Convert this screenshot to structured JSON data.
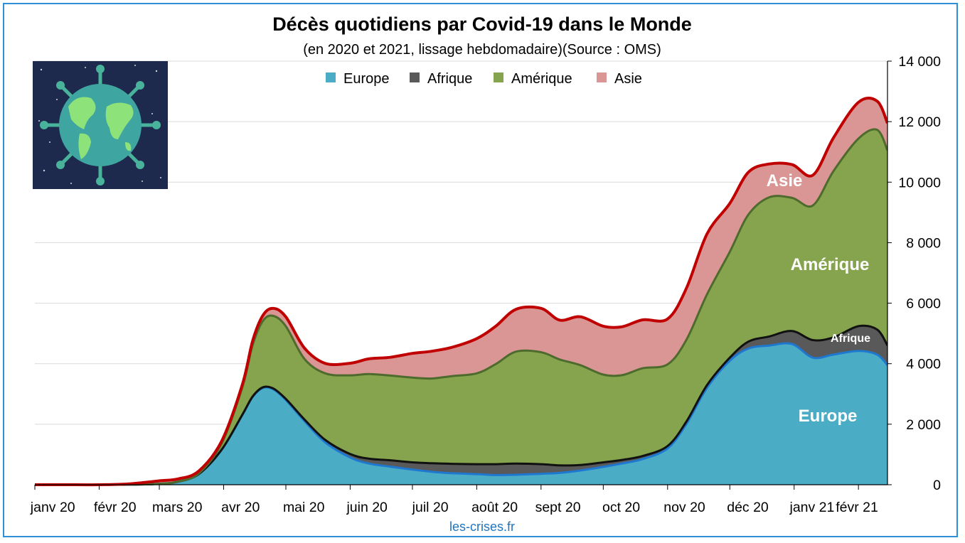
{
  "chart_data": {
    "type": "area",
    "stacked": true,
    "title": "Décès quotidiens par Covid-19 dans le Monde",
    "subtitle": "(en 2020 et 2021, lissage hebdomadaire)(Source : OMS)",
    "source": "les-crises.fr",
    "x_labels": [
      "janv 20",
      "févr 20",
      "mars 20",
      "avr 20",
      "mai 20",
      "juin 20",
      "juil 20",
      "août 20",
      "sept 20",
      "oct 20",
      "nov 20",
      "déc 20",
      "janv 21",
      "févr 21"
    ],
    "y_ticks": [
      "0",
      "2 000",
      "4 000",
      "6 000",
      "8 000",
      "10 000",
      "12 000",
      "14 000"
    ],
    "y_axis_position": "right",
    "ylim": [
      0,
      14000
    ],
    "grid": true,
    "legend_position": "top",
    "x_dates": [
      "2020-01-01",
      "2020-01-15",
      "2020-02-01",
      "2020-02-15",
      "2020-03-01",
      "2020-03-10",
      "2020-03-20",
      "2020-03-31",
      "2020-04-10",
      "2020-04-15",
      "2020-04-20",
      "2020-04-25",
      "2020-05-01",
      "2020-05-10",
      "2020-05-20",
      "2020-06-01",
      "2020-06-10",
      "2020-06-20",
      "2020-07-01",
      "2020-07-10",
      "2020-07-20",
      "2020-08-01",
      "2020-08-10",
      "2020-08-20",
      "2020-09-01",
      "2020-09-10",
      "2020-09-20",
      "2020-10-01",
      "2020-10-10",
      "2020-10-20",
      "2020-11-01",
      "2020-11-10",
      "2020-11-20",
      "2020-12-01",
      "2020-12-10",
      "2020-12-20",
      "2020-12-31",
      "2021-01-10",
      "2021-01-20",
      "2021-02-01",
      "2021-02-10",
      "2021-02-15"
    ],
    "series": [
      {
        "name": "Europe",
        "color": "#4bacc6",
        "line": "#1f78d0",
        "values": [
          0,
          0,
          0,
          5,
          30,
          100,
          350,
          1150,
          2300,
          2900,
          3200,
          3150,
          2800,
          2100,
          1400,
          900,
          700,
          600,
          500,
          430,
          380,
          350,
          320,
          330,
          360,
          390,
          470,
          590,
          700,
          850,
          1200,
          2000,
          3200,
          4100,
          4500,
          4600,
          4650,
          4200,
          4300,
          4420,
          4300,
          3950
        ]
      },
      {
        "name": "Afrique",
        "color": "#595959",
        "line": "#111111",
        "values": [
          0,
          0,
          0,
          0,
          0,
          0,
          2,
          6,
          12,
          18,
          22,
          28,
          35,
          55,
          80,
          115,
          160,
          210,
          240,
          280,
          310,
          330,
          360,
          370,
          320,
          250,
          180,
          150,
          120,
          100,
          80,
          80,
          90,
          100,
          230,
          300,
          430,
          580,
          570,
          820,
          830,
          650
        ]
      },
      {
        "name": "Amérique",
        "color": "#86a34d",
        "line": "#4d6b2d",
        "values": [
          0,
          0,
          0,
          0,
          0,
          3,
          20,
          200,
          900,
          1700,
          2200,
          2400,
          2400,
          2000,
          2200,
          2600,
          2800,
          2800,
          2800,
          2800,
          2900,
          3000,
          3300,
          3700,
          3700,
          3500,
          3300,
          2900,
          2800,
          2900,
          2700,
          2700,
          3000,
          3500,
          4200,
          4600,
          4400,
          4450,
          5500,
          6200,
          6600,
          6450
        ]
      },
      {
        "name": "Asie",
        "color": "#da9694",
        "line": "#c00000",
        "values": [
          0,
          0,
          0,
          20,
          100,
          90,
          80,
          80,
          90,
          140,
          180,
          250,
          310,
          360,
          330,
          400,
          500,
          600,
          800,
          900,
          950,
          1150,
          1250,
          1400,
          1450,
          1300,
          1600,
          1600,
          1600,
          1600,
          1500,
          1700,
          2000,
          1600,
          1400,
          1100,
          1100,
          1000,
          1100,
          1200,
          950,
          900
        ]
      }
    ],
    "series_labels": [
      "Europe",
      "Afrique",
      "Amérique",
      "Asie"
    ]
  },
  "image": {
    "subject": "globe-virus"
  }
}
